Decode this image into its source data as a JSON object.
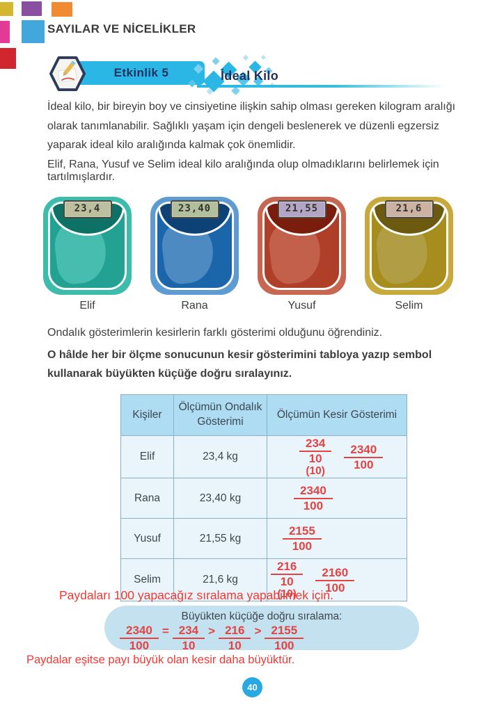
{
  "unit_title": "SAYILAR VE NİCELİKLER",
  "activity": {
    "badge": "Etkinlik 5",
    "title": "İdeal Kilo"
  },
  "intro": {
    "p1": "İdeal kilo, bir bireyin boy ve cinsiyetine ilişkin sahip olması gereken kilogram aralığı olarak tanımlanabilir. Sağlıklı yaşam için dengeli beslenerek ve düzenli egzersiz yaparak ideal kilo aralığında kalmak çok önemlidir.",
    "p2": "Elif, Rana, Yusuf ve Selim ideal kilo aralığında olup olmadıklarını belirlemek için tartılmışlardır."
  },
  "scales": [
    {
      "name": "Elif",
      "reading": "23,4",
      "colors": {
        "outer": "#3cbcab",
        "body": "#23a294",
        "hood": "#0d7265",
        "gloss": "#5ecfbf",
        "display": "#bcc09f"
      }
    },
    {
      "name": "Rana",
      "reading": "23,40",
      "colors": {
        "outer": "#5d9bd2",
        "body": "#1b66ab",
        "hood": "#0c4276",
        "gloss": "#6fa1d0",
        "display": "#b2bf9d"
      }
    },
    {
      "name": "Yusuf",
      "reading": "21,55",
      "colors": {
        "outer": "#c86751",
        "body": "#b03f2a",
        "hood": "#7a1d0d",
        "gloss": "#cf7763",
        "display": "#b3a5c5"
      }
    },
    {
      "name": "Selim",
      "reading": "21,6",
      "colors": {
        "outer": "#c8aa3c",
        "body": "#a78d1e",
        "hood": "#6b5a10",
        "gloss": "#b8a85e",
        "display": "#cbb2a3"
      }
    }
  ],
  "prompt": {
    "learned": "Ondalık gösterimlerin kesirlerin farklı gösterimi olduğunu öğrendiniz.",
    "task": "O hâlde her bir ölçme sonucunun kesir gösterimini tabloya yazıp sembol kullanarak büyükten küçüğe doğru sıralayınız."
  },
  "table": {
    "headers": [
      "Kişiler",
      "Ölçümün Ondalık Gösterimi",
      "Ölçümün Kesir Gösterimi"
    ],
    "rows": [
      {
        "name": "Elif",
        "decimal": "23,4 kg",
        "fractions": [
          {
            "num": "234",
            "den": "10",
            "note": "(10)"
          },
          {
            "num": "2340",
            "den": "100"
          }
        ]
      },
      {
        "name": "Rana",
        "decimal": "23,40 kg",
        "fractions": [
          {
            "num": "2340",
            "den": "100"
          }
        ]
      },
      {
        "name": "Yusuf",
        "decimal": "21,55 kg",
        "fractions": [
          {
            "num": "2155",
            "den": "100"
          }
        ]
      },
      {
        "name": "Selim",
        "decimal": "21,6 kg",
        "fractions": [
          {
            "num": "216",
            "den": "10",
            "note": "(10)"
          },
          {
            "num": "2160",
            "den": "100"
          }
        ]
      }
    ]
  },
  "notes": {
    "above_box": "Paydaları 100 yapacağız sıralama yapabilmek için.",
    "below_box": "Paydalar eşitse payı büyük olan kesir daha büyüktür."
  },
  "ordering": {
    "title": "Büyükten küçüğe doğru sıralama:",
    "sequence": [
      {
        "type": "fraction",
        "num": "2340",
        "den": "100"
      },
      {
        "type": "op",
        "value": "="
      },
      {
        "type": "fraction",
        "num": "234",
        "den": "10"
      },
      {
        "type": "op",
        "value": ">"
      },
      {
        "type": "fraction",
        "num": "216",
        "den": "10"
      },
      {
        "type": "op",
        "value": ">"
      },
      {
        "type": "fraction",
        "num": "2155",
        "den": "100"
      }
    ]
  },
  "page_number": "40",
  "colors": {
    "banner_cyan": "#2bb7e6",
    "navy_text": "#21315e",
    "red_annotation": "#ee3a34",
    "fraction_red": "#e24444",
    "table_header_bg": "#aedcf2",
    "table_cell_bg": "#e9f4fb",
    "table_border": "#8ab0c8",
    "order_box_bg": "#c3e1ee",
    "page_badge_bg": "#29a9e1",
    "corner_squares": [
      "#d4b630",
      "#8a4fa0",
      "#f08a33",
      "#e23b95",
      "#42a7dc",
      "#d2262e"
    ]
  }
}
